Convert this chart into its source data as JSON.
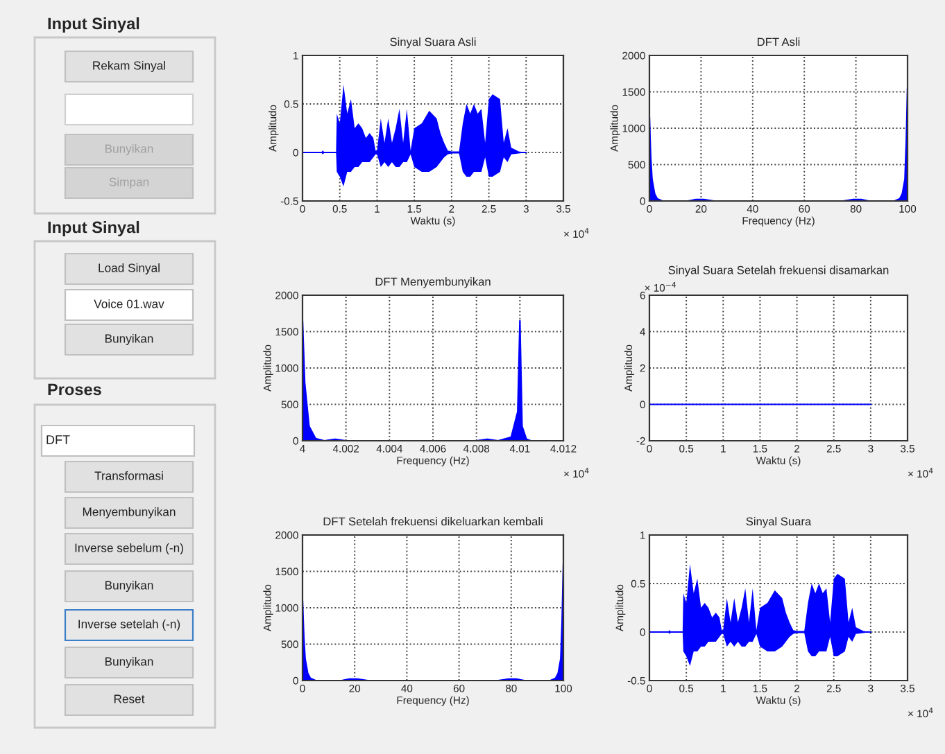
{
  "chart_data": [
    {
      "type": "other",
      "annotations": [
        "Input Sinyal",
        "Rekam Sinyal",
        "Bunyikan",
        "Simpan",
        "Input Sinyal",
        "Load Sinyal",
        "Voice 01.wav",
        "Bunyikan",
        "Proses",
        "DFT",
        "Transformasi",
        "Menyembunyikan",
        "Inverse sebelum (-n)",
        "Bunyikan",
        "Inverse setelah (-n)",
        "Bunyikan",
        "Reset"
      ]
    },
    {
      "type": "line",
      "title": "Sinyal Suara Asli",
      "xlabel": "Waktu (s)",
      "ylabel": "Amplitudo",
      "annotations": [
        "× 10$^{4}$"
      ],
      "xlim": [
        0,
        3.5
      ],
      "xticks": [
        0,
        0.5,
        1,
        1.5,
        2,
        2.5,
        3,
        3.5
      ],
      "ylim": [
        -0.5,
        1
      ],
      "yticks": [
        -0.5,
        0,
        0.5,
        1
      ],
      "grid": true,
      "series": [
        {
          "color": "#0000ff",
          "x": [
            0,
            0.25,
            0.27,
            0.3,
            0.45,
            0.46,
            0.5,
            0.55,
            0.6,
            0.65,
            0.7,
            0.75,
            0.8,
            0.85,
            0.9,
            0.95,
            0.98,
            1.0,
            1.05,
            1.1,
            1.15,
            1.2,
            1.25,
            1.3,
            1.35,
            1.4,
            1.45,
            1.5,
            1.6,
            1.7,
            1.8,
            1.85,
            1.9,
            1.95,
            2.0,
            2.1,
            2.15,
            2.2,
            2.25,
            2.3,
            2.35,
            2.4,
            2.45,
            2.5,
            2.55,
            2.65,
            2.7,
            2.75,
            2.8,
            2.9,
            3.0
          ],
          "values": [
            0,
            0,
            0,
            0,
            0,
            0,
            0,
            0,
            0,
            0,
            0,
            0,
            0,
            0,
            0,
            0,
            0,
            0,
            0,
            0,
            0,
            0,
            0,
            0,
            0,
            0,
            0,
            0,
            0,
            0,
            0,
            0,
            0,
            0,
            0,
            0,
            0,
            0,
            0,
            0,
            0,
            0,
            0,
            0,
            0,
            0,
            0,
            0,
            0,
            0,
            0
          ],
          "upper": [
            0,
            0,
            0.02,
            0,
            0,
            0.4,
            0.3,
            0.7,
            0.4,
            0.55,
            0.25,
            0.3,
            0.25,
            0.15,
            0.2,
            0.15,
            0.02,
            0.02,
            0.35,
            0.1,
            0.35,
            0.1,
            0.25,
            0.45,
            0.1,
            0.45,
            0.02,
            0.25,
            0.3,
            0.43,
            0.35,
            0.2,
            0.1,
            0.02,
            0.01,
            0.01,
            0.3,
            0.5,
            0.4,
            0.5,
            0.4,
            0.45,
            0.1,
            0.55,
            0.6,
            0.55,
            0.1,
            0.25,
            0.05,
            0.01,
            0
          ],
          "lower": [
            0,
            0,
            -0.02,
            0,
            0,
            -0.2,
            -0.25,
            -0.35,
            -0.2,
            -0.2,
            -0.15,
            -0.15,
            -0.1,
            -0.1,
            -0.1,
            -0.05,
            -0.02,
            -0.02,
            -0.15,
            -0.1,
            -0.15,
            -0.1,
            -0.15,
            -0.15,
            -0.1,
            -0.1,
            -0.02,
            -0.15,
            -0.2,
            -0.2,
            -0.15,
            -0.1,
            -0.05,
            -0.02,
            -0.01,
            -0.01,
            -0.2,
            -0.25,
            -0.25,
            -0.2,
            -0.2,
            -0.2,
            -0.05,
            -0.25,
            -0.25,
            -0.2,
            -0.05,
            -0.1,
            -0.02,
            -0.01,
            0
          ]
        }
      ]
    },
    {
      "type": "area",
      "title": "DFT Asli",
      "xlabel": "Frequency (Hz)",
      "ylabel": "Amplitudo",
      "xlim": [
        0,
        100
      ],
      "xticks": [
        0,
        20,
        40,
        60,
        80,
        100
      ],
      "ylim": [
        0,
        2000
      ],
      "yticks": [
        0,
        500,
        1000,
        1500,
        2000
      ],
      "grid": true,
      "series": [
        {
          "color": "#0000ff",
          "x": [
            0,
            0.5,
            1,
            2,
            3,
            5,
            10,
            15,
            18,
            21,
            25,
            40,
            60,
            75,
            79,
            82,
            85,
            90,
            95,
            97,
            98,
            99,
            99.5,
            100
          ],
          "values": [
            1150,
            600,
            300,
            100,
            30,
            0,
            0,
            0,
            20,
            20,
            0,
            0,
            0,
            0,
            20,
            20,
            0,
            0,
            0,
            30,
            100,
            300,
            800,
            1550
          ]
        }
      ]
    },
    {
      "type": "area",
      "title": "DFT Menyembunyikan",
      "xlabel": "Frequency (Hz)",
      "ylabel": "Amplitudo",
      "annotations": [
        "× 10$^{4}$"
      ],
      "xlim": [
        4.0,
        4.012
      ],
      "xticks": [
        {
          "value": 4.0,
          "label": "4"
        },
        4.002,
        4.004,
        4.006,
        4.008,
        4.01,
        4.012
      ],
      "ylim": [
        0,
        2000
      ],
      "yticks": [
        0,
        500,
        1000,
        1500,
        2000
      ],
      "grid": true,
      "series": [
        {
          "color": "#0000ff",
          "x": [
            4.0,
            4.0001,
            4.0003,
            4.0006,
            4.001,
            4.0015,
            4.002,
            4.005,
            4.008,
            4.0085,
            4.009,
            4.0096,
            4.0099,
            4.01,
            4.0101,
            4.0103,
            4.0105
          ],
          "values": [
            1650,
            800,
            200,
            30,
            0,
            20,
            0,
            0,
            0,
            20,
            0,
            50,
            400,
            1650,
            200,
            20,
            0
          ]
        }
      ]
    },
    {
      "type": "line",
      "title": "Sinyal Suara Setelah frekuensi disamarkan",
      "xlabel": "Waktu (s)",
      "ylabel": "Amplitudo",
      "annotations": [
        "× 10$^{4}$",
        "× 10$^{−4}$"
      ],
      "xlim": [
        0,
        3.5
      ],
      "xticks": [
        0,
        0.5,
        1,
        1.5,
        2,
        2.5,
        3,
        3.5
      ],
      "ylim": [
        -2,
        6
      ],
      "yticks": [
        -2,
        0,
        2,
        4,
        6
      ],
      "grid": true,
      "series": [
        {
          "color": "#0000ff",
          "x": [
            0,
            1,
            2,
            3
          ],
          "values": [
            0,
            0,
            0,
            0
          ]
        }
      ]
    },
    {
      "type": "area",
      "title": "DFT Setelah frekuensi dikeluarkan kembali",
      "xlabel": "Frequency (Hz)",
      "ylabel": "Amplitudo",
      "xlim": [
        0,
        100
      ],
      "xticks": [
        0,
        20,
        40,
        60,
        80,
        100
      ],
      "ylim": [
        0,
        2000
      ],
      "yticks": [
        0,
        500,
        1000,
        1500,
        2000
      ],
      "grid": true,
      "series": [
        {
          "color": "#0000ff",
          "x": [
            0,
            0.5,
            1,
            2,
            3,
            5,
            10,
            15,
            18,
            21,
            25,
            40,
            60,
            75,
            79,
            82,
            85,
            90,
            95,
            97,
            98,
            99,
            99.5,
            100
          ],
          "values": [
            1100,
            600,
            300,
            100,
            30,
            0,
            0,
            0,
            20,
            20,
            0,
            0,
            0,
            0,
            20,
            20,
            0,
            0,
            0,
            30,
            100,
            300,
            800,
            1600
          ]
        }
      ]
    },
    {
      "type": "line",
      "title": "Sinyal Suara",
      "xlabel": "Waktu (s)",
      "ylabel": "Amplitudo",
      "annotations": [
        "× 10$^{4}$"
      ],
      "xlim": [
        0,
        3.5
      ],
      "xticks": [
        0,
        0.5,
        1,
        1.5,
        2,
        2.5,
        3,
        3.5
      ],
      "ylim": [
        -0.5,
        1
      ],
      "yticks": [
        -0.5,
        0,
        0.5,
        1
      ],
      "grid": true,
      "series": [
        {
          "color": "#0000ff",
          "x": [
            0,
            0.25,
            0.27,
            0.3,
            0.45,
            0.46,
            0.5,
            0.55,
            0.6,
            0.65,
            0.7,
            0.75,
            0.8,
            0.85,
            0.9,
            0.95,
            0.98,
            1.0,
            1.05,
            1.1,
            1.15,
            1.2,
            1.25,
            1.3,
            1.35,
            1.4,
            1.45,
            1.5,
            1.6,
            1.7,
            1.8,
            1.85,
            1.9,
            1.95,
            2.0,
            2.1,
            2.15,
            2.2,
            2.25,
            2.3,
            2.35,
            2.4,
            2.45,
            2.5,
            2.55,
            2.65,
            2.7,
            2.75,
            2.8,
            2.9,
            3.0
          ],
          "values": [
            0,
            0,
            0,
            0,
            0,
            0,
            0,
            0,
            0,
            0,
            0,
            0,
            0,
            0,
            0,
            0,
            0,
            0,
            0,
            0,
            0,
            0,
            0,
            0,
            0,
            0,
            0,
            0,
            0,
            0,
            0,
            0,
            0,
            0,
            0,
            0,
            0,
            0,
            0,
            0,
            0,
            0,
            0,
            0,
            0,
            0,
            0,
            0,
            0,
            0,
            0
          ],
          "upper": [
            0,
            0,
            0.02,
            0,
            0,
            0.4,
            0.3,
            0.7,
            0.4,
            0.55,
            0.25,
            0.3,
            0.25,
            0.15,
            0.2,
            0.15,
            0.02,
            0.02,
            0.35,
            0.1,
            0.35,
            0.1,
            0.25,
            0.45,
            0.1,
            0.45,
            0.02,
            0.25,
            0.3,
            0.43,
            0.35,
            0.2,
            0.1,
            0.02,
            0.01,
            0.01,
            0.3,
            0.5,
            0.4,
            0.5,
            0.4,
            0.45,
            0.1,
            0.55,
            0.6,
            0.55,
            0.1,
            0.25,
            0.05,
            0.01,
            0
          ],
          "lower": [
            0,
            0,
            -0.02,
            0,
            0,
            -0.2,
            -0.25,
            -0.35,
            -0.2,
            -0.2,
            -0.15,
            -0.15,
            -0.1,
            -0.1,
            -0.1,
            -0.05,
            -0.02,
            -0.02,
            -0.15,
            -0.1,
            -0.15,
            -0.1,
            -0.15,
            -0.15,
            -0.1,
            -0.1,
            -0.02,
            -0.15,
            -0.2,
            -0.2,
            -0.15,
            -0.1,
            -0.05,
            -0.02,
            -0.01,
            -0.01,
            -0.2,
            -0.25,
            -0.25,
            -0.2,
            -0.2,
            -0.2,
            -0.05,
            -0.25,
            -0.25,
            -0.2,
            -0.05,
            -0.1,
            -0.02,
            -0.01,
            0
          ]
        }
      ]
    }
  ]
}
